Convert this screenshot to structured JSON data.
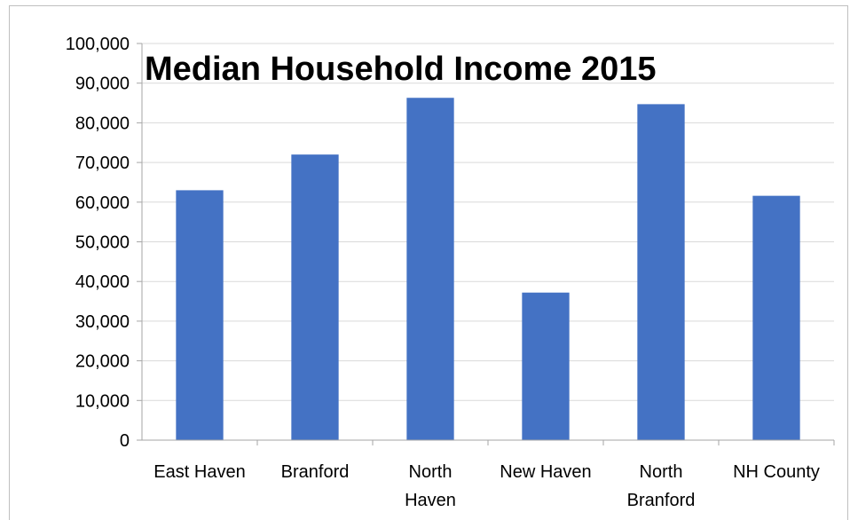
{
  "chart_data": {
    "type": "bar",
    "title": "Median Household Income 2015",
    "xlabel": "",
    "ylabel": "",
    "categories": [
      [
        "East Haven"
      ],
      [
        "Branford"
      ],
      [
        "North",
        "Haven"
      ],
      [
        "New Haven"
      ],
      [
        "North",
        "Branford"
      ],
      [
        "NH County"
      ]
    ],
    "values": [
      63000,
      72000,
      86300,
      37200,
      84700,
      61600
    ],
    "ylim": [
      0,
      100000
    ],
    "yticks": [
      0,
      10000,
      20000,
      30000,
      40000,
      50000,
      60000,
      70000,
      80000,
      90000,
      100000
    ],
    "ytick_labels": [
      "0",
      "10,000",
      "20,000",
      "30,000",
      "40,000",
      "50,000",
      "60,000",
      "70,000",
      "80,000",
      "90,000",
      "100,000"
    ],
    "grid": true,
    "legend": "none",
    "colors": {
      "bar": "#4472C4",
      "grid": "#d9d9d9",
      "axis": "#a6a6a6"
    }
  }
}
